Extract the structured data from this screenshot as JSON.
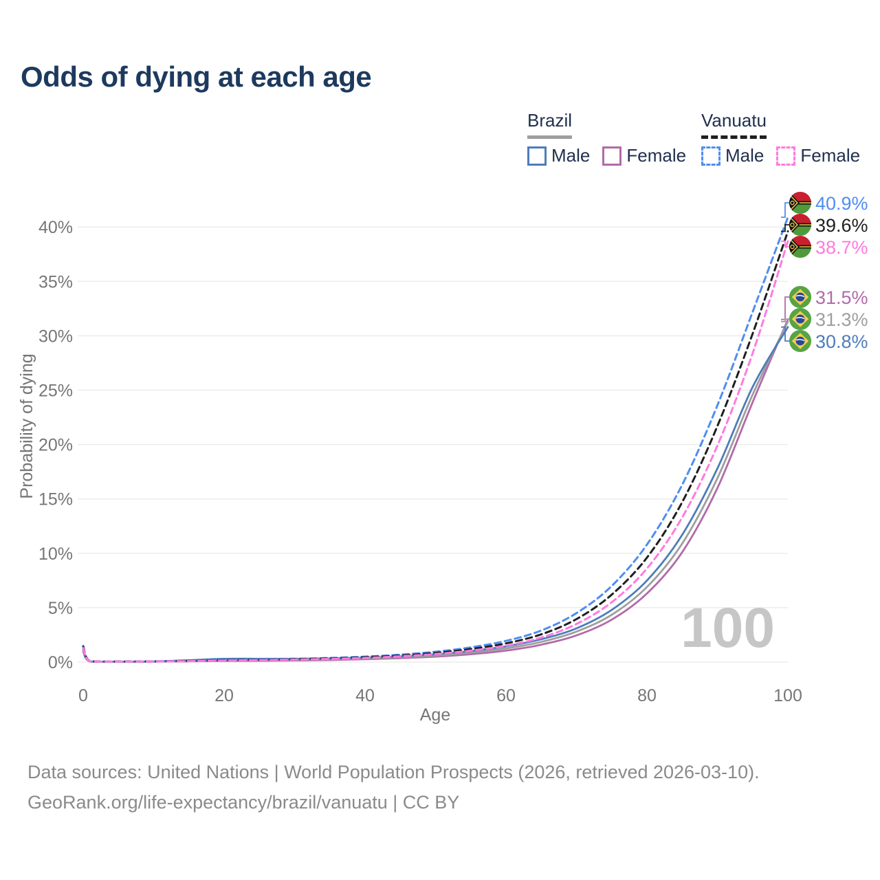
{
  "header": {
    "title": "Odds of dying at each age"
  },
  "legend": {
    "groups": [
      {
        "country": "Brazil",
        "items": [
          {
            "label": "Male",
            "series": "brazil-male"
          },
          {
            "label": "Female",
            "series": "brazil-female"
          }
        ]
      },
      {
        "country": "Vanuatu",
        "items": [
          {
            "label": "Male",
            "series": "vanuatu-male"
          },
          {
            "label": "Female",
            "series": "vanuatu-female"
          }
        ]
      }
    ]
  },
  "chart_data": {
    "type": "line",
    "title": "Odds of dying at each age",
    "xlabel": "Age",
    "ylabel": "Probability of dying",
    "watermark": "100",
    "xlim": [
      0,
      100
    ],
    "ylim_pct": [
      0,
      42
    ],
    "x_ticks": [
      0,
      20,
      40,
      60,
      80,
      100
    ],
    "y_ticks_pct": [
      0,
      5,
      10,
      15,
      20,
      25,
      30,
      35,
      40
    ],
    "grid": "horizontal-only",
    "legend_position": "top-right",
    "ages": [
      0,
      1,
      5,
      10,
      15,
      20,
      25,
      30,
      35,
      40,
      45,
      50,
      55,
      60,
      65,
      70,
      75,
      80,
      85,
      90,
      95,
      100
    ],
    "series": [
      {
        "id": "vanuatu-male",
        "country": "Vanuatu",
        "sex": "Male",
        "color": "#4f8df2",
        "line_style": "dashed",
        "end_label": "40.9%",
        "values_pct": [
          1.5,
          0.08,
          0.05,
          0.07,
          0.12,
          0.2,
          0.25,
          0.3,
          0.38,
          0.5,
          0.68,
          0.95,
          1.35,
          1.95,
          2.9,
          4.5,
          7.0,
          10.8,
          16.3,
          23.6,
          32.2,
          40.9
        ]
      },
      {
        "id": "vanuatu-both",
        "country": "Vanuatu",
        "sex": "Both sexes",
        "color": "#1f1f1f",
        "line_style": "dashed",
        "end_label": "39.6%",
        "values_pct": [
          1.4,
          0.07,
          0.045,
          0.06,
          0.1,
          0.17,
          0.21,
          0.26,
          0.33,
          0.44,
          0.6,
          0.84,
          1.2,
          1.72,
          2.55,
          3.95,
          6.2,
          9.6,
          14.7,
          21.7,
          30.2,
          39.6
        ]
      },
      {
        "id": "vanuatu-female",
        "country": "Vanuatu",
        "sex": "Female",
        "color": "#ff7ae0",
        "line_style": "dashed",
        "end_label": "38.7%",
        "values_pct": [
          1.3,
          0.065,
          0.04,
          0.055,
          0.09,
          0.14,
          0.18,
          0.22,
          0.29,
          0.38,
          0.53,
          0.74,
          1.05,
          1.5,
          2.25,
          3.5,
          5.5,
          8.6,
          13.3,
          19.9,
          28.4,
          38.7
        ]
      },
      {
        "id": "brazil-female",
        "country": "Brazil",
        "sex": "Female",
        "color": "#b26aa8",
        "line_style": "solid",
        "end_label": "31.5%",
        "values_pct": [
          0.95,
          0.045,
          0.03,
          0.04,
          0.07,
          0.1,
          0.12,
          0.15,
          0.19,
          0.26,
          0.36,
          0.5,
          0.72,
          1.05,
          1.6,
          2.45,
          3.9,
          6.3,
          10.1,
          16.0,
          23.9,
          31.5
        ]
      },
      {
        "id": "brazil-both",
        "country": "Brazil",
        "sex": "Both sexes",
        "color": "#9e9e9e",
        "line_style": "solid",
        "end_label": "31.3%",
        "values_pct": [
          1.1,
          0.05,
          0.035,
          0.05,
          0.12,
          0.2,
          0.21,
          0.22,
          0.26,
          0.33,
          0.44,
          0.6,
          0.87,
          1.25,
          1.85,
          2.8,
          4.35,
          6.9,
          10.9,
          16.9,
          24.6,
          31.3
        ]
      },
      {
        "id": "brazil-male",
        "country": "Brazil",
        "sex": "Male",
        "color": "#4e7cba",
        "line_style": "solid",
        "end_label": "30.8%",
        "values_pct": [
          1.2,
          0.06,
          0.04,
          0.06,
          0.17,
          0.3,
          0.3,
          0.3,
          0.33,
          0.4,
          0.52,
          0.72,
          1.02,
          1.45,
          2.1,
          3.1,
          4.8,
          7.5,
          11.7,
          17.8,
          25.3,
          30.8
        ]
      }
    ]
  },
  "footer": {
    "line1": "Data sources: United Nations | World Population Prospects (2026, retrieved 2026-03-10).",
    "line2": "GeoRank.org/life-expectancy/brazil/vanuatu | CC BY"
  }
}
